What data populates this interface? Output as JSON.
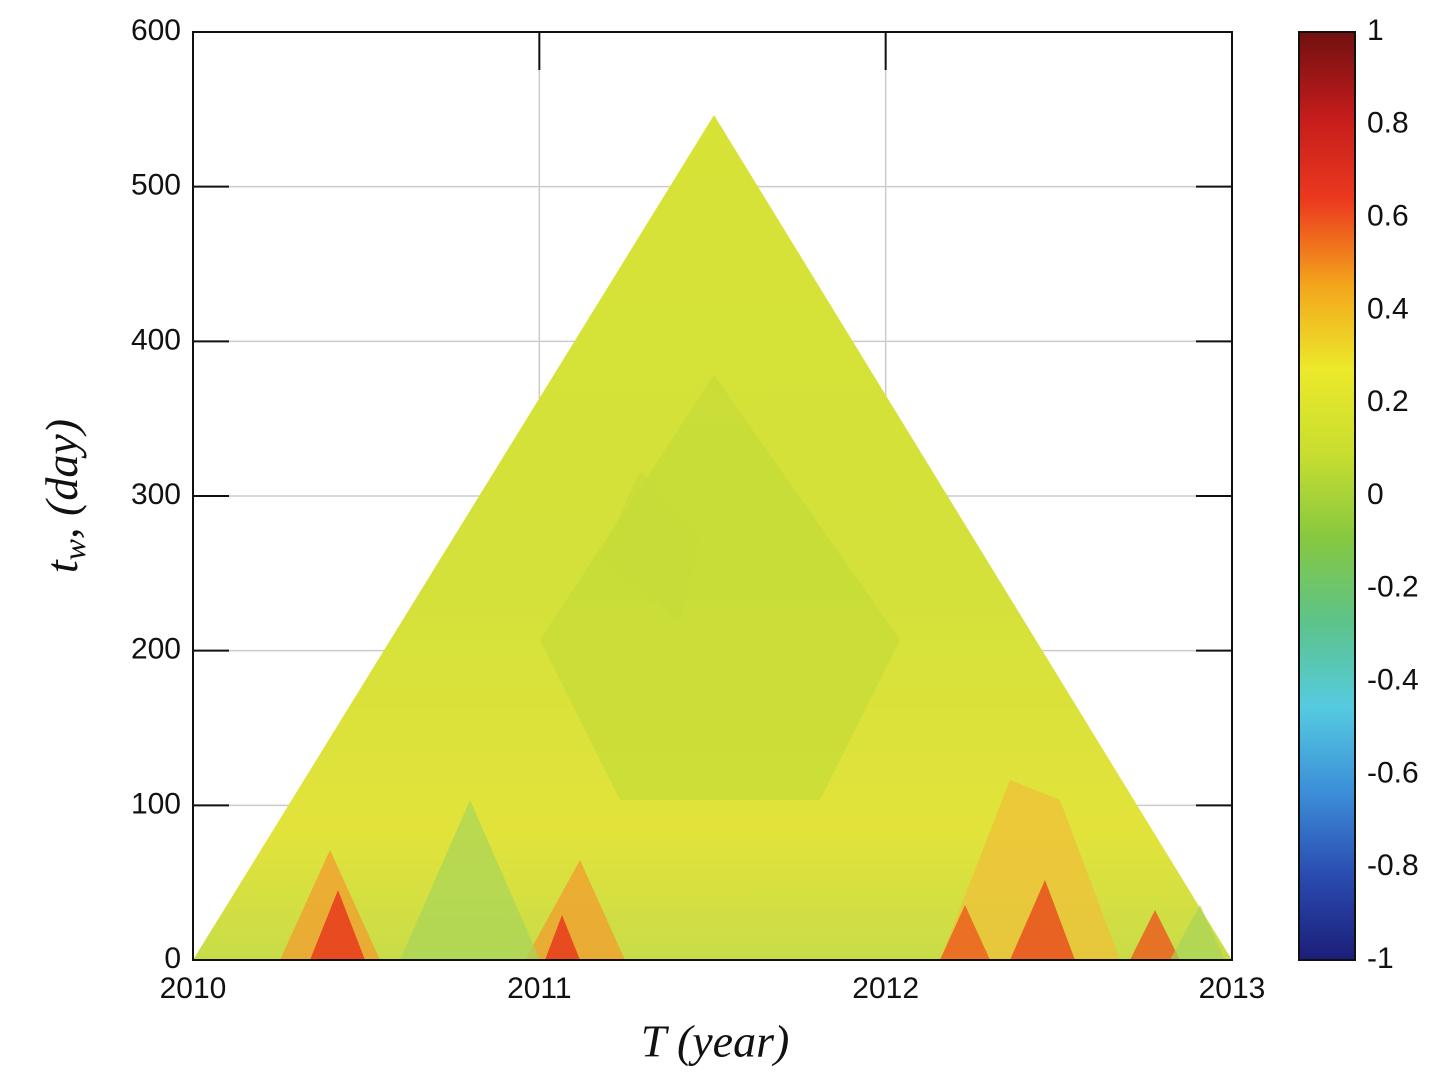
{
  "chart_data": {
    "type": "heatmap",
    "xlabel": "T (year)",
    "ylabel": "t",
    "ylabel_sub": "w",
    "ylabel_rest": ", (day)",
    "xlim": [
      2010,
      2013
    ],
    "xticks": [
      2010,
      2011,
      2012,
      2013
    ],
    "ylim": [
      0,
      600
    ],
    "yticks": [
      0,
      100,
      200,
      300,
      400,
      500,
      600
    ],
    "grid": true,
    "colorbar": {
      "lim": [
        -1,
        1
      ],
      "ticks": [
        -1,
        -0.8,
        -0.6,
        -0.4,
        -0.2,
        0,
        0.2,
        0.4,
        0.6,
        0.8,
        1
      ],
      "colormap": [
        "#1b1e78",
        "#2a4bb0",
        "#3c8fd8",
        "#55cbe0",
        "#5cc38a",
        "#86c840",
        "#c8de30",
        "#ece92a",
        "#f3a51c",
        "#ec3a1e",
        "#c41c1c",
        "#701010"
      ]
    }
  }
}
